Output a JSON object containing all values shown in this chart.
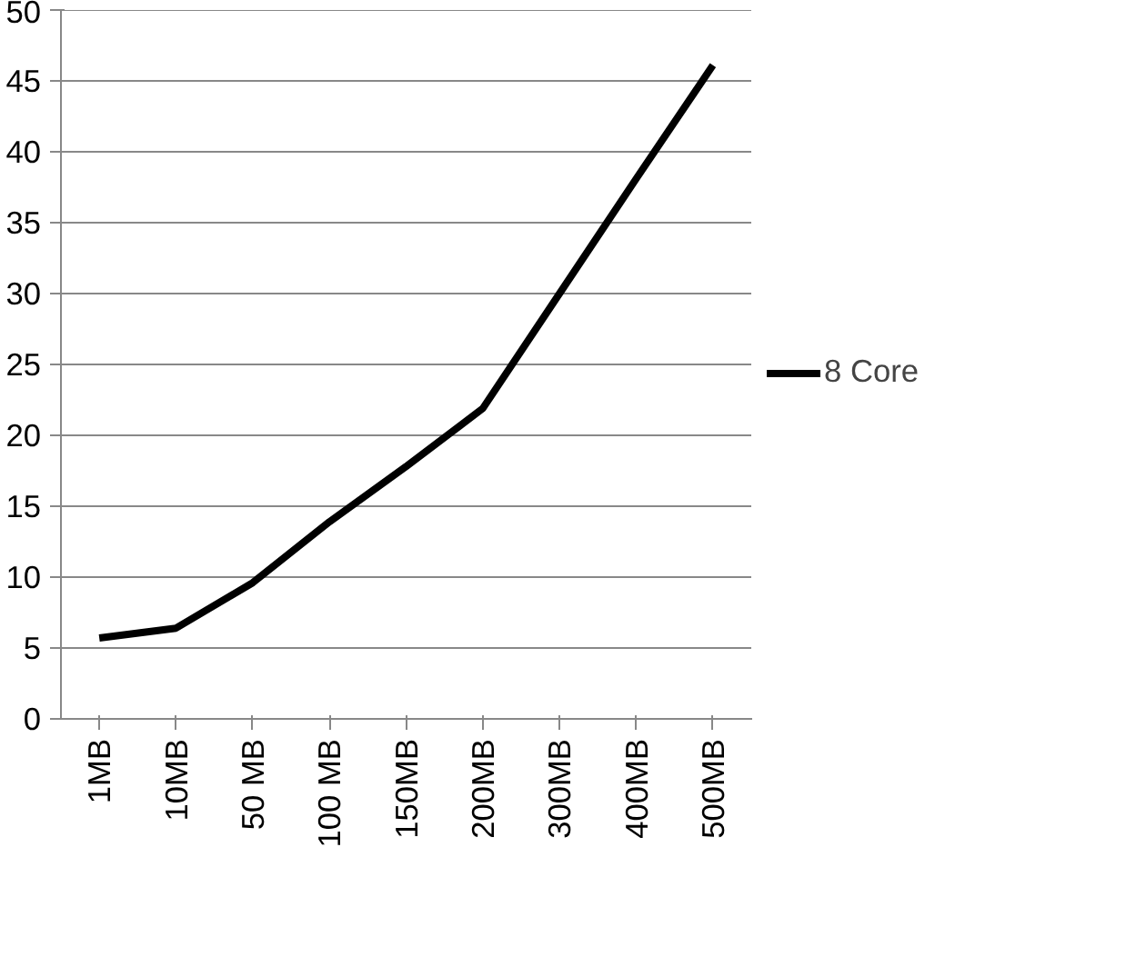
{
  "chart_data": {
    "type": "line",
    "categories": [
      "1MB",
      "10MB",
      "50 MB",
      "100 MB",
      "150MB",
      "200MB",
      "300MB",
      "400MB",
      "500MB"
    ],
    "series": [
      {
        "name": "8 Core",
        "color": "#000000",
        "values": [
          5.7,
          6.4,
          9.6,
          13.9,
          17.8,
          21.9,
          30.0,
          38.1,
          46.1
        ]
      }
    ],
    "ylim": [
      0,
      50
    ],
    "yticks": [
      0,
      5,
      10,
      15,
      20,
      25,
      30,
      35,
      40,
      45,
      50
    ],
    "grid": "y",
    "legend": "right",
    "marker": "none",
    "line_style": "solid"
  }
}
